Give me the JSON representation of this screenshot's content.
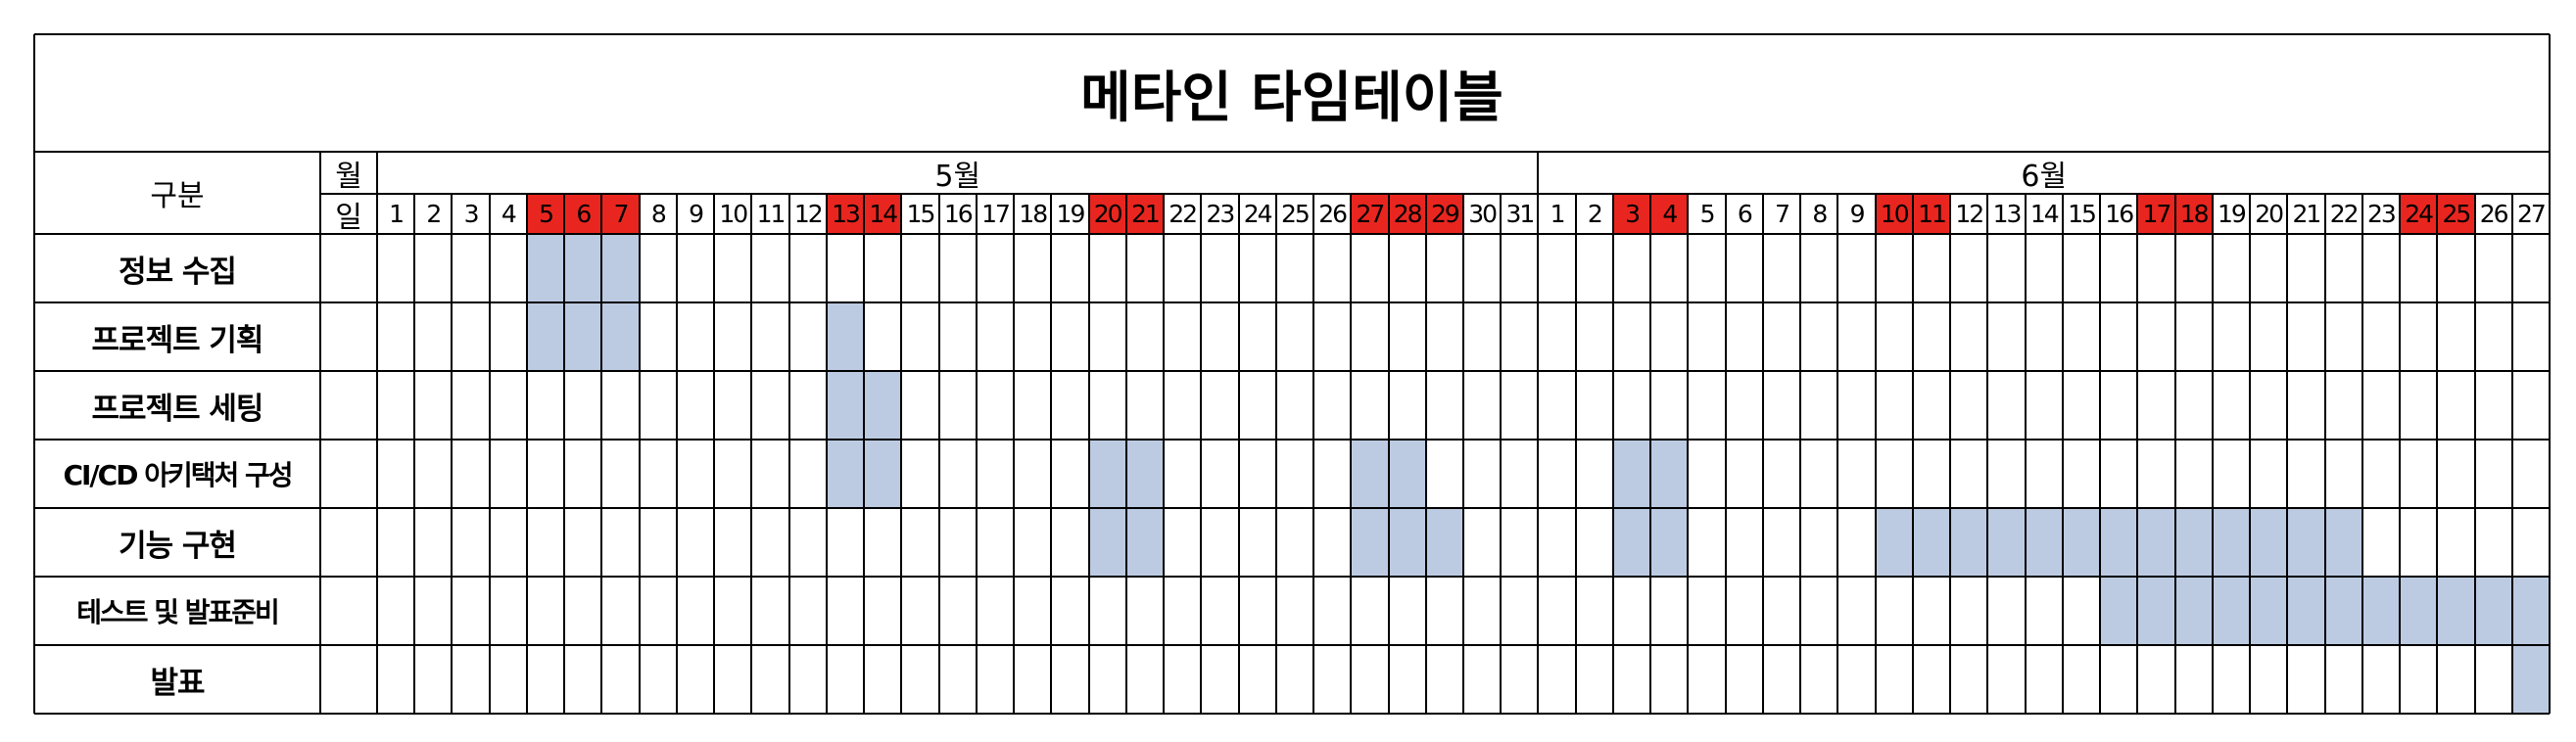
{
  "title": "메타인 타임테이블",
  "header": {
    "category_label": "구분",
    "month_label": "월",
    "day_label": "일"
  },
  "months": [
    {
      "label": "5월",
      "days": 31,
      "holidays": [
        5,
        6,
        7,
        13,
        14,
        20,
        21,
        27,
        28,
        29
      ]
    },
    {
      "label": "6월",
      "days": 27,
      "holidays": [
        3,
        4,
        10,
        11,
        17,
        18,
        24,
        25
      ]
    }
  ],
  "tasks": [
    {
      "name": "정보 수집",
      "schedule": [
        {
          "month": 0,
          "days": [
            5,
            6,
            7
          ]
        }
      ]
    },
    {
      "name": "프로젝트 기획",
      "schedule": [
        {
          "month": 0,
          "days": [
            5,
            6,
            7,
            13
          ]
        }
      ]
    },
    {
      "name": "프로젝트 세팅",
      "schedule": [
        {
          "month": 0,
          "days": [
            13,
            14
          ]
        }
      ]
    },
    {
      "name": "CI/CD 아키택처 구성",
      "schedule": [
        {
          "month": 0,
          "days": [
            13,
            14,
            20,
            21,
            27,
            28
          ]
        },
        {
          "month": 1,
          "days": [
            3,
            4
          ]
        }
      ]
    },
    {
      "name": "기능 구현",
      "schedule": [
        {
          "month": 0,
          "days": [
            20,
            21,
            27,
            28,
            29
          ]
        },
        {
          "month": 1,
          "days": [
            3,
            4,
            10,
            11,
            12,
            13,
            14,
            15,
            16,
            17,
            18,
            19,
            20,
            21,
            22
          ]
        }
      ]
    },
    {
      "name": "테스트 및 발표준비",
      "schedule": [
        {
          "month": 1,
          "days": [
            16,
            17,
            18,
            19,
            20,
            21,
            22,
            23,
            24,
            25,
            26,
            27
          ]
        }
      ]
    },
    {
      "name": "발표",
      "schedule": [
        {
          "month": 1,
          "days": [
            27
          ]
        }
      ]
    }
  ],
  "colors": {
    "holiday": "#e8261f",
    "scheduled": "#bccbe2",
    "grid": "#000000"
  }
}
